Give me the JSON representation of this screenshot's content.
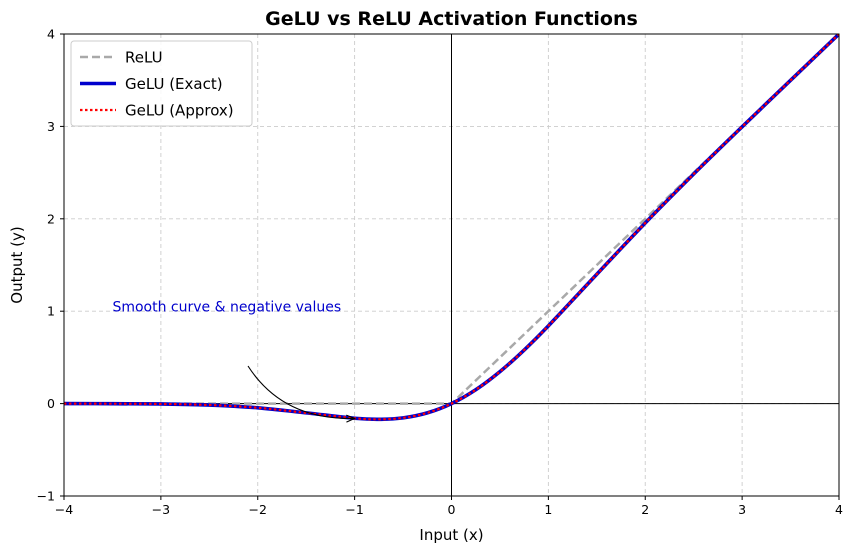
{
  "chart_data": {
    "type": "line",
    "title": "GeLU vs ReLU Activation Functions",
    "xlabel": "Input (x)",
    "ylabel": "Output (y)",
    "xlim": [
      -4,
      4
    ],
    "ylim": [
      -1,
      4
    ],
    "xticks": [
      -4,
      -3,
      -2,
      -1,
      0,
      1,
      2,
      3,
      4
    ],
    "yticks": [
      -1,
      0,
      1,
      2,
      3,
      4
    ],
    "xtick_labels": [
      "−4",
      "−3",
      "−2",
      "−1",
      "0",
      "1",
      "2",
      "3",
      "4"
    ],
    "ytick_labels": [
      "−1",
      "0",
      "1",
      "2",
      "3",
      "4"
    ],
    "grid": true,
    "legend_position": "top-left",
    "series": [
      {
        "name": "ReLU",
        "style": "dashed",
        "color": "#a9a9a9",
        "x": [
          -4,
          -3,
          -2,
          -1,
          0,
          1,
          2,
          3,
          4
        ],
        "y": [
          0,
          0,
          0,
          0,
          0,
          1,
          2,
          3,
          4
        ]
      },
      {
        "name": "GeLU (Exact)",
        "style": "solid",
        "color": "#0000cd",
        "x": [
          -4,
          -3.5,
          -3,
          -2.5,
          -2,
          -1.5,
          -1,
          -0.75,
          -0.5,
          -0.25,
          0,
          0.25,
          0.5,
          0.75,
          1,
          1.5,
          2,
          2.5,
          3,
          3.5,
          4
        ],
        "y": [
          -0.0001,
          -0.0008,
          -0.004,
          -0.0155,
          -0.0455,
          -0.1002,
          -0.1587,
          -0.17,
          -0.1543,
          -0.1003,
          0,
          0.1497,
          0.3457,
          0.58,
          0.8413,
          1.3998,
          1.9545,
          2.4845,
          2.996,
          3.4992,
          3.9999
        ]
      },
      {
        "name": "GeLU (Approx)",
        "style": "dotted",
        "color": "#ff0000",
        "x": [
          -4,
          -3.5,
          -3,
          -2.5,
          -2,
          -1.5,
          -1,
          -0.75,
          -0.5,
          -0.25,
          0,
          0.25,
          0.5,
          0.75,
          1,
          1.5,
          2,
          2.5,
          3,
          3.5,
          4
        ],
        "y": [
          -0.0001,
          -0.0009,
          -0.0036,
          -0.0151,
          -0.0454,
          -0.1004,
          -0.1588,
          -0.17,
          -0.1543,
          -0.1003,
          0,
          0.1497,
          0.3457,
          0.58,
          0.8412,
          1.3996,
          1.9546,
          2.4849,
          2.9964,
          3.4991,
          3.9999
        ]
      }
    ],
    "annotation": {
      "text": "Smooth curve & negative values",
      "text_at": [
        -3.5,
        0.5
      ],
      "arrow_to": [
        -1,
        -0.16
      ],
      "color": "#0000cc"
    }
  }
}
